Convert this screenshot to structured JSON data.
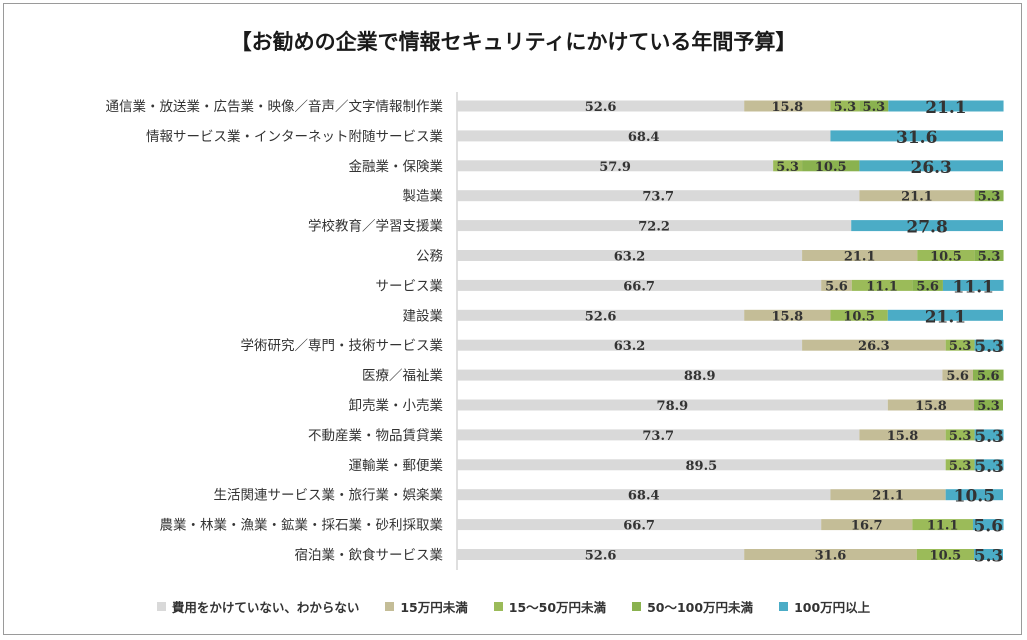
{
  "chart_data": {
    "type": "bar",
    "orientation": "horizontal",
    "stacked": true,
    "title": "【お勧めの企業で情報セキュリティにかけている年間予算】",
    "categories": [
      "通信業・放送業・広告業・映像／音声／文字情報制作業",
      "情報サービス業・インターネット附随サービス業",
      "金融業・保険業",
      "製造業",
      "学校教育／学習支援業",
      "公務",
      "サービス業",
      "建設業",
      "学術研究／専門・技術サービス業",
      "医療／福祉業",
      "卸売業・小売業",
      "不動産業・物品賃貸業",
      "運輸業・郵便業",
      "生活関連サービス業・旅行業・娯楽業",
      "農業・林業・漁業・鉱業・採石業・砂利採取業",
      "宿泊業・飲食サービス業"
    ],
    "series": [
      {
        "name": "費用をかけていない、わからない",
        "color": "#d9d9d9",
        "values": [
          52.6,
          68.4,
          57.9,
          73.7,
          72.2,
          63.2,
          66.7,
          52.6,
          63.2,
          88.9,
          78.9,
          73.7,
          89.5,
          68.4,
          66.7,
          52.6
        ]
      },
      {
        "name": "15万円未満",
        "color": "#c4bd97",
        "values": [
          15.8,
          null,
          null,
          21.1,
          null,
          21.1,
          5.6,
          15.8,
          26.3,
          5.6,
          15.8,
          15.8,
          null,
          21.1,
          16.7,
          31.6
        ]
      },
      {
        "name": "15～50万円未満",
        "color": "#9bbb59",
        "values": [
          5.3,
          null,
          5.3,
          null,
          null,
          10.5,
          11.1,
          10.5,
          5.3,
          null,
          null,
          5.3,
          5.3,
          null,
          11.1,
          10.5
        ]
      },
      {
        "name": "50～100万円未満",
        "color": "#8ab24f",
        "values": [
          5.3,
          null,
          10.5,
          5.3,
          null,
          5.3,
          5.6,
          null,
          null,
          5.6,
          5.3,
          null,
          null,
          null,
          null,
          null
        ]
      },
      {
        "name": "100万円以上",
        "color": "#4bacc6",
        "values": [
          21.1,
          31.6,
          26.3,
          null,
          27.8,
          null,
          11.1,
          21.1,
          5.3,
          null,
          null,
          5.3,
          5.3,
          10.5,
          5.6,
          5.3
        ]
      }
    ],
    "xlim": [
      0,
      100
    ],
    "legend_position": "bottom",
    "grid": false
  }
}
